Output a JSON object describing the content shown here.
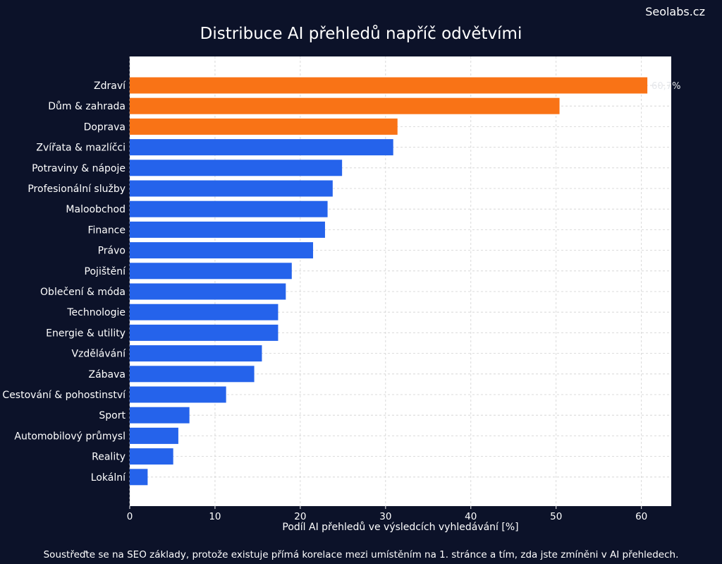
{
  "brand": "Seolabs.cz",
  "caption": "Soustřeďte se na SEO základy, protože existuje přímá korelace mezi umístěním na 1. stránce a tím, zda jste zmíněni v AI přehledech.",
  "colors": {
    "background": "#0c1229",
    "plot_background": "#ffffff",
    "highlight_bar": "#f97316",
    "regular_bar": "#2563eb",
    "grid": "#d0d0d0"
  },
  "chart_data": {
    "type": "bar",
    "orientation": "horizontal",
    "title": "Distribuce AI přehledů napříč odvětvími",
    "xlabel": "Podíl AI přehledů ve výsledcích vyhledávání [%]",
    "ylabel": "",
    "xlim": [
      0,
      63.5
    ],
    "xticks": [
      0,
      10,
      20,
      30,
      40,
      50,
      60
    ],
    "grid": true,
    "highlight_top_n": 3,
    "categories": [
      "Zdraví",
      "Dům & zahrada",
      "Doprava",
      "Zvířata & mazlíčci",
      "Potraviny & nápoje",
      "Profesionální služby",
      "Maloobchod",
      "Finance",
      "Právo",
      "Pojištění",
      "Oblečení & móda",
      "Technologie",
      "Energie & utility",
      "Vzdělávání",
      "Zábava",
      "Cestování & pohostinství",
      "Sport",
      "Automobilový průmysl",
      "Reality",
      "Lokální"
    ],
    "values": [
      60.7,
      50.4,
      31.4,
      30.9,
      24.9,
      23.8,
      23.2,
      22.9,
      21.5,
      19.0,
      18.3,
      17.4,
      17.4,
      15.5,
      14.6,
      11.3,
      7.0,
      5.7,
      5.1,
      2.1
    ],
    "annotations": [
      {
        "category": "Zdraví",
        "text": "60,7%"
      }
    ]
  }
}
